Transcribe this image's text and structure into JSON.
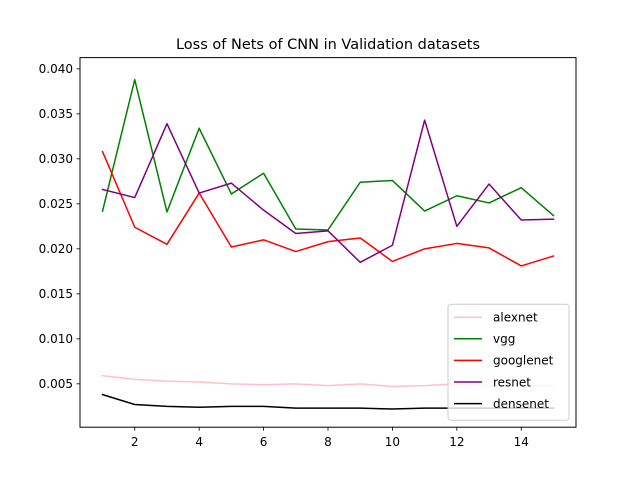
{
  "chart_data": {
    "type": "line",
    "title": "Loss of Nets of CNN in Validation datasets",
    "xlabel": "",
    "ylabel": "",
    "x": [
      1,
      2,
      3,
      4,
      5,
      6,
      7,
      8,
      9,
      10,
      11,
      12,
      13,
      14,
      15
    ],
    "xlim": [
      0.3,
      15.7
    ],
    "ylim": [
      0.00018,
      0.04125
    ],
    "x_ticks": [
      2,
      4,
      6,
      8,
      10,
      12,
      14
    ],
    "x_tick_labels": [
      "2",
      "4",
      "6",
      "8",
      "10",
      "12",
      "14"
    ],
    "y_ticks": [
      0.005,
      0.01,
      0.015,
      0.02,
      0.025,
      0.03,
      0.035,
      0.04
    ],
    "y_tick_labels": [
      "0.005",
      "0.010",
      "0.015",
      "0.020",
      "0.025",
      "0.030",
      "0.035",
      "0.040"
    ],
    "grid": false,
    "legend_position": "lower-right",
    "series": [
      {
        "name": "alexnet",
        "color": "#ffc0cb",
        "values": [
          0.0059,
          0.0055,
          0.0053,
          0.0052,
          0.005,
          0.0049,
          0.005,
          0.0048,
          0.005,
          0.0047,
          0.0048,
          0.005,
          0.0048,
          0.0048,
          0.0048
        ]
      },
      {
        "name": "vgg",
        "color": "#008000",
        "values": [
          0.0242,
          0.0388,
          0.0241,
          0.0334,
          0.0261,
          0.0284,
          0.0222,
          0.0221,
          0.0274,
          0.0276,
          0.0242,
          0.0259,
          0.0251,
          0.0268,
          0.0237
        ]
      },
      {
        "name": "googlenet",
        "color": "#ff0000",
        "values": [
          0.0308,
          0.0224,
          0.0205,
          0.0262,
          0.0202,
          0.021,
          0.0197,
          0.0208,
          0.0212,
          0.0186,
          0.02,
          0.0206,
          0.0201,
          0.0181,
          0.0192
        ]
      },
      {
        "name": "resnet",
        "color": "#800080",
        "values": [
          0.0266,
          0.0257,
          0.0339,
          0.0262,
          0.0273,
          0.0243,
          0.0217,
          0.022,
          0.0185,
          0.0204,
          0.0343,
          0.0225,
          0.0272,
          0.0232,
          0.0233
        ]
      },
      {
        "name": "densenet",
        "color": "#000000",
        "values": [
          0.0038,
          0.0027,
          0.0025,
          0.0024,
          0.0025,
          0.0025,
          0.0023,
          0.0023,
          0.0023,
          0.0022,
          0.0023,
          0.0023,
          0.0023,
          0.0023,
          0.0023
        ]
      }
    ]
  }
}
